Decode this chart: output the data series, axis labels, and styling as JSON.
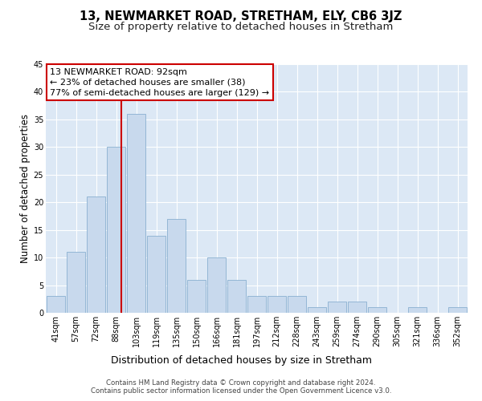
{
  "title": "13, NEWMARKET ROAD, STRETHAM, ELY, CB6 3JZ",
  "subtitle": "Size of property relative to detached houses in Stretham",
  "xlabel": "Distribution of detached houses by size in Stretham",
  "ylabel": "Number of detached properties",
  "categories": [
    "41sqm",
    "57sqm",
    "72sqm",
    "88sqm",
    "103sqm",
    "119sqm",
    "135sqm",
    "150sqm",
    "166sqm",
    "181sqm",
    "197sqm",
    "212sqm",
    "228sqm",
    "243sqm",
    "259sqm",
    "274sqm",
    "290sqm",
    "305sqm",
    "321sqm",
    "336sqm",
    "352sqm"
  ],
  "values": [
    3,
    11,
    21,
    30,
    36,
    14,
    17,
    6,
    10,
    6,
    3,
    3,
    3,
    1,
    2,
    2,
    1,
    0,
    1,
    0,
    1
  ],
  "bar_color": "#c8d9ed",
  "bar_edge_color": "#8ab0d0",
  "property_line_color": "#cc0000",
  "annotation_text": "13 NEWMARKET ROAD: 92sqm\n← 23% of detached houses are smaller (38)\n77% of semi-detached houses are larger (129) →",
  "annotation_box_color": "#ffffff",
  "annotation_box_edge_color": "#cc0000",
  "ylim": [
    0,
    45
  ],
  "yticks": [
    0,
    5,
    10,
    15,
    20,
    25,
    30,
    35,
    40,
    45
  ],
  "background_color": "#dce8f5",
  "grid_color": "#ffffff",
  "title_fontsize": 10.5,
  "subtitle_fontsize": 9.5,
  "xlabel_fontsize": 9,
  "ylabel_fontsize": 8.5,
  "tick_fontsize": 7,
  "annotation_fontsize": 8,
  "footer_text": "Contains HM Land Registry data © Crown copyright and database right 2024.\nContains public sector information licensed under the Open Government Licence v3.0."
}
